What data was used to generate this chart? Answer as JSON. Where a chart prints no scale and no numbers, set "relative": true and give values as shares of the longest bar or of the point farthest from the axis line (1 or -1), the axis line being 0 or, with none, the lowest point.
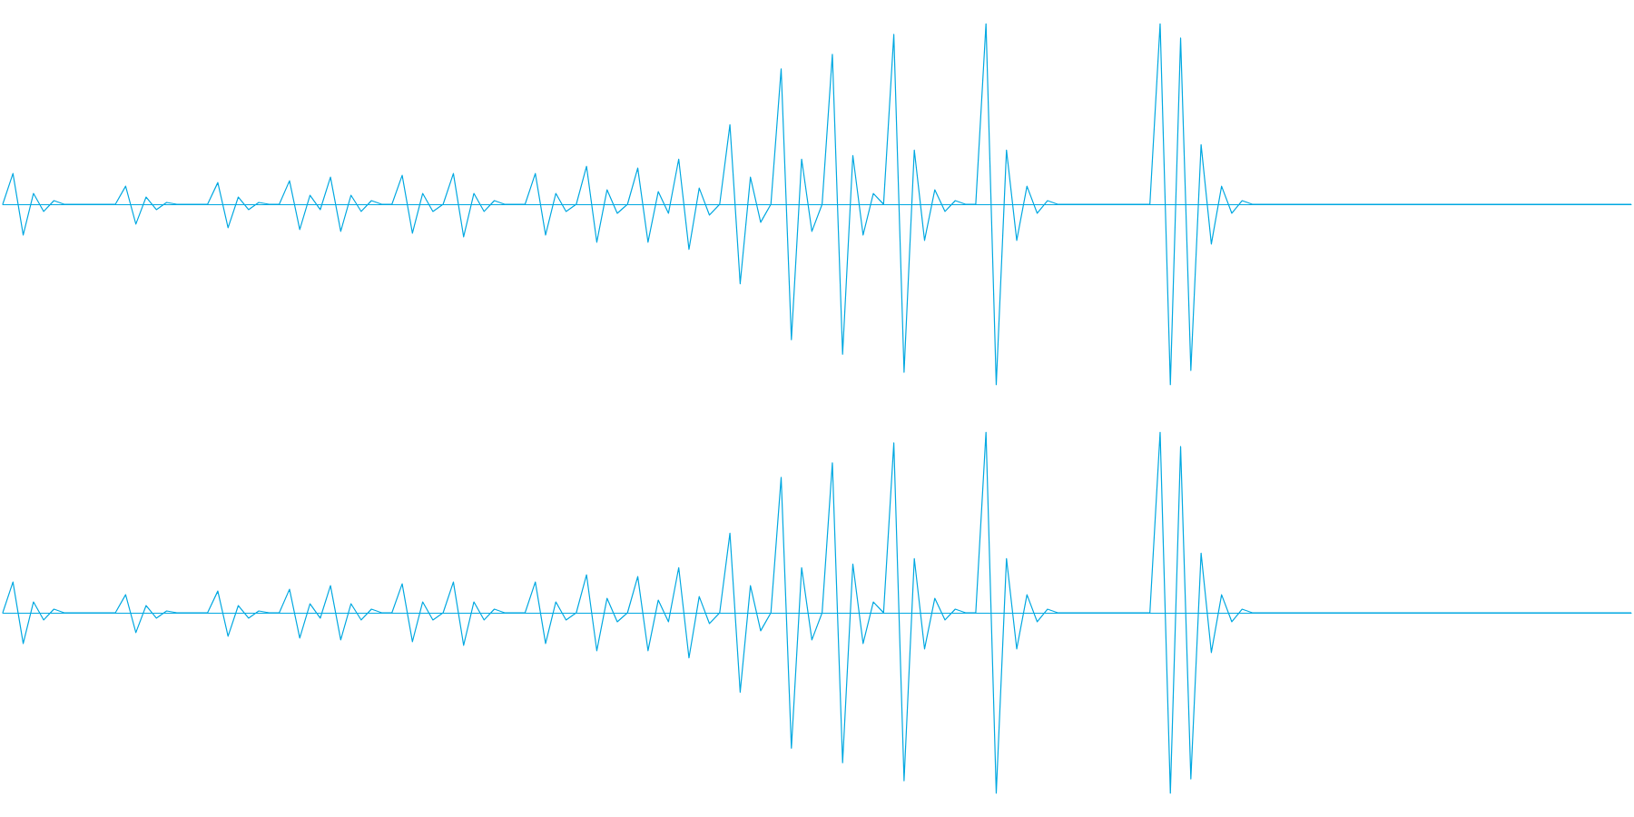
{
  "chart_data": [
    {
      "type": "line",
      "relative": true,
      "ref_lines": [
        {
          "axis": "y",
          "value": 0
        }
      ],
      "color": "#00a8e1",
      "categories": [
        null,
        null,
        null,
        null,
        null,
        null,
        null,
        null,
        null,
        null,
        null,
        null,
        null,
        null,
        null,
        null,
        null,
        null,
        null,
        null,
        null,
        null,
        null,
        null,
        null,
        null,
        null,
        null,
        null,
        null,
        null,
        null,
        null,
        null,
        null,
        null,
        null,
        null,
        null,
        null,
        null,
        null,
        null,
        null,
        null,
        null,
        null,
        null,
        null,
        null,
        null,
        null,
        null,
        null,
        null,
        null,
        null,
        null,
        null,
        null,
        null,
        null,
        null,
        null,
        null,
        null,
        null,
        null,
        null,
        null,
        null,
        null,
        null,
        null,
        null,
        null,
        null,
        null,
        null,
        null,
        null,
        null,
        null,
        null,
        null,
        null,
        null,
        null,
        null,
        null,
        null,
        null,
        null,
        null,
        null,
        null,
        null,
        null,
        null,
        null,
        null,
        null,
        null,
        null,
        null,
        null,
        null,
        null,
        null,
        null,
        null,
        null,
        null,
        null,
        null,
        null,
        null,
        null,
        null,
        null,
        null,
        null,
        null,
        null,
        null,
        null,
        null,
        null,
        null,
        null,
        null,
        null,
        null,
        null,
        null,
        null,
        null,
        null,
        null,
        null,
        null,
        null,
        null,
        null,
        null,
        null,
        null,
        null,
        null,
        null,
        null,
        null,
        null,
        null,
        null,
        null,
        null,
        null,
        null,
        null
      ],
      "values": [
        0,
        0.17,
        -0.17,
        0.06,
        -0.04,
        0.02,
        0,
        0,
        0,
        0,
        0,
        0,
        0.1,
        -0.11,
        0.04,
        -0.03,
        0.01,
        0,
        0,
        0,
        0,
        0.12,
        -0.13,
        0.04,
        -0.03,
        0.01,
        0,
        0,
        0.13,
        -0.14,
        0.05,
        -0.03,
        0.15,
        -0.15,
        0.05,
        -0.04,
        0.02,
        0,
        0,
        0.16,
        -0.16,
        0.06,
        -0.04,
        0,
        0.17,
        -0.18,
        0.06,
        -0.04,
        0.02,
        0,
        0,
        0,
        0.17,
        -0.17,
        0.06,
        -0.04,
        0,
        0.21,
        -0.21,
        0.08,
        -0.05,
        0,
        0.2,
        -0.21,
        0.07,
        -0.05,
        0.25,
        -0.25,
        0.09,
        -0.06,
        0,
        0.44,
        -0.44,
        0.15,
        -0.1,
        0,
        0.75,
        -0.75,
        0.25,
        -0.15,
        0,
        0.83,
        -0.83,
        0.27,
        -0.17,
        0.06,
        0,
        0.94,
        -0.93,
        0.3,
        -0.2,
        0.08,
        -0.04,
        0.02,
        0,
        0,
        1,
        -1,
        0.3,
        -0.2,
        0.1,
        -0.05,
        0.02,
        0,
        0,
        0,
        0,
        0,
        0,
        0,
        0,
        0,
        0,
        1,
        -1,
        0.92,
        -0.92,
        0.33,
        -0.22,
        0.1,
        -0.05,
        0.02,
        0,
        0,
        0,
        0,
        0,
        0,
        0,
        0,
        0,
        0,
        0,
        0,
        0,
        0,
        0,
        0,
        0,
        0,
        0,
        0,
        0,
        0,
        0,
        0,
        0,
        0,
        0,
        0,
        0,
        0,
        0,
        0,
        0,
        0,
        0,
        0,
        0,
        0
      ]
    },
    {
      "type": "line",
      "relative": true,
      "ref_lines": [
        {
          "axis": "y",
          "value": 0
        }
      ],
      "color": "#00a8e1",
      "categories": [
        null,
        null,
        null,
        null,
        null,
        null,
        null,
        null,
        null,
        null,
        null,
        null,
        null,
        null,
        null,
        null,
        null,
        null,
        null,
        null,
        null,
        null,
        null,
        null,
        null,
        null,
        null,
        null,
        null,
        null,
        null,
        null,
        null,
        null,
        null,
        null,
        null,
        null,
        null,
        null,
        null,
        null,
        null,
        null,
        null,
        null,
        null,
        null,
        null,
        null,
        null,
        null,
        null,
        null,
        null,
        null,
        null,
        null,
        null,
        null,
        null,
        null,
        null,
        null,
        null,
        null,
        null,
        null,
        null,
        null,
        null,
        null,
        null,
        null,
        null,
        null,
        null,
        null,
        null,
        null,
        null,
        null,
        null,
        null,
        null,
        null,
        null,
        null,
        null,
        null,
        null,
        null,
        null,
        null,
        null,
        null,
        null,
        null,
        null,
        null,
        null,
        null,
        null,
        null,
        null,
        null,
        null,
        null,
        null,
        null,
        null,
        null,
        null,
        null,
        null,
        null,
        null,
        null,
        null,
        null,
        null,
        null,
        null,
        null,
        null,
        null,
        null,
        null,
        null,
        null,
        null,
        null,
        null,
        null,
        null,
        null,
        null,
        null,
        null,
        null,
        null,
        null,
        null,
        null,
        null,
        null,
        null,
        null,
        null,
        null,
        null,
        null,
        null,
        null,
        null,
        null,
        null,
        null,
        null,
        null
      ],
      "values": [
        0,
        0.17,
        -0.17,
        0.06,
        -0.04,
        0.02,
        0,
        0,
        0,
        0,
        0,
        0,
        0.1,
        -0.11,
        0.04,
        -0.03,
        0.01,
        0,
        0,
        0,
        0,
        0.12,
        -0.13,
        0.04,
        -0.03,
        0.01,
        0,
        0,
        0.13,
        -0.14,
        0.05,
        -0.03,
        0.15,
        -0.15,
        0.05,
        -0.04,
        0.02,
        0,
        0,
        0.16,
        -0.16,
        0.06,
        -0.04,
        0,
        0.17,
        -0.18,
        0.06,
        -0.04,
        0.02,
        0,
        0,
        0,
        0.17,
        -0.17,
        0.06,
        -0.04,
        0,
        0.21,
        -0.21,
        0.08,
        -0.05,
        0,
        0.2,
        -0.21,
        0.07,
        -0.05,
        0.25,
        -0.25,
        0.09,
        -0.06,
        0,
        0.44,
        -0.44,
        0.15,
        -0.1,
        0,
        0.75,
        -0.75,
        0.25,
        -0.15,
        0,
        0.83,
        -0.83,
        0.27,
        -0.17,
        0.06,
        0,
        0.94,
        -0.93,
        0.3,
        -0.2,
        0.08,
        -0.04,
        0.02,
        0,
        0,
        1,
        -1,
        0.3,
        -0.2,
        0.1,
        -0.05,
        0.02,
        0,
        0,
        0,
        0,
        0,
        0,
        0,
        0,
        0,
        0,
        1,
        -1,
        0.92,
        -0.92,
        0.33,
        -0.22,
        0.1,
        -0.05,
        0.02,
        0,
        0,
        0,
        0,
        0,
        0,
        0,
        0,
        0,
        0,
        0,
        0,
        0,
        0,
        0,
        0,
        0,
        0,
        0,
        0,
        0,
        0,
        0,
        0,
        0,
        0,
        0,
        0,
        0,
        0,
        0,
        0,
        0,
        0,
        0,
        0,
        0,
        0
      ]
    }
  ]
}
